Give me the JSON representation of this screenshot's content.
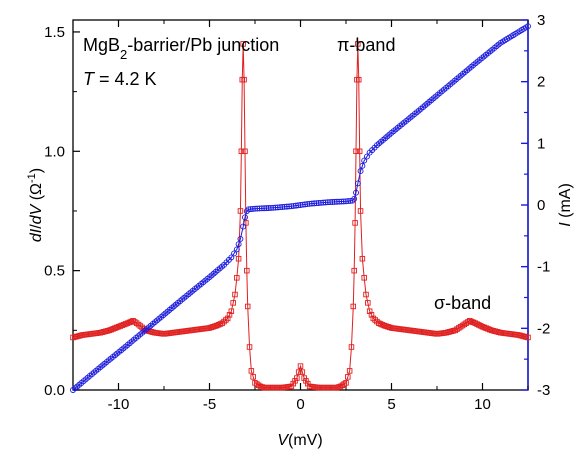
{
  "chart_data": {
    "type": "scatter",
    "title": "",
    "xlabel": "V(mV)",
    "xlim": [
      -12.5,
      12.5
    ],
    "x_ticks": [
      -10,
      -5,
      0,
      5,
      10
    ],
    "y_left": {
      "label": "dI/dV (Ω⁻¹)",
      "ylim": [
        0,
        1.55
      ],
      "ticks": [
        "0.0",
        "0.5",
        "1.0",
        "1.5"
      ]
    },
    "y_right": {
      "label": "I (mA)",
      "ylim": [
        -3,
        3
      ],
      "ticks": [
        "-3",
        "-2",
        "-1",
        "0",
        "1",
        "2",
        "3"
      ]
    },
    "annotations": {
      "line1_main": "MgB",
      "line1_sub": "2",
      "line1_rest": "-barrier/Pb junction",
      "line2_var": "T",
      "line2_rest": " = 4.2 K",
      "pi_band": "π-band",
      "sigma_band": "σ-band"
    },
    "colors": {
      "didv": "#e02020",
      "current": "#1a1adc",
      "right_axis": "#1a1adc"
    },
    "series": [
      {
        "axis": "left",
        "marker": "open-square",
        "points": [
          [
            -12.5,
            0.22
          ],
          [
            -12,
            0.23
          ],
          [
            -11.5,
            0.235
          ],
          [
            -11,
            0.24
          ],
          [
            -10.5,
            0.25
          ],
          [
            -10,
            0.265
          ],
          [
            -9.5,
            0.28
          ],
          [
            -9.2,
            0.29
          ],
          [
            -9,
            0.28
          ],
          [
            -8.5,
            0.25
          ],
          [
            -8,
            0.24
          ],
          [
            -7.5,
            0.235
          ],
          [
            -7,
            0.24
          ],
          [
            -6.5,
            0.245
          ],
          [
            -6,
            0.25
          ],
          [
            -5.5,
            0.255
          ],
          [
            -5,
            0.26
          ],
          [
            -4.6,
            0.27
          ],
          [
            -4.3,
            0.28
          ],
          [
            -4,
            0.3
          ],
          [
            -3.8,
            0.33
          ],
          [
            -3.6,
            0.4
          ],
          [
            -3.5,
            0.47
          ],
          [
            -3.4,
            0.55
          ],
          [
            -3.3,
            0.75
          ],
          [
            -3.25,
            1.0
          ],
          [
            -3.2,
            1.3
          ],
          [
            -3.15,
            1.45
          ],
          [
            -3.1,
            1.3
          ],
          [
            -3.05,
            1.0
          ],
          [
            -3.0,
            0.7
          ],
          [
            -2.95,
            0.5
          ],
          [
            -2.9,
            0.35
          ],
          [
            -2.8,
            0.18
          ],
          [
            -2.7,
            0.08
          ],
          [
            -2.5,
            0.03
          ],
          [
            -2.2,
            0.015
          ],
          [
            -2,
            0.01
          ],
          [
            -1.5,
            0.01
          ],
          [
            -1,
            0.01
          ],
          [
            -0.5,
            0.015
          ],
          [
            -0.2,
            0.05
          ],
          [
            0,
            0.1
          ],
          [
            0.2,
            0.05
          ],
          [
            0.5,
            0.015
          ],
          [
            1,
            0.01
          ],
          [
            1.5,
            0.01
          ],
          [
            2,
            0.01
          ],
          [
            2.2,
            0.015
          ],
          [
            2.5,
            0.03
          ],
          [
            2.7,
            0.08
          ],
          [
            2.8,
            0.18
          ],
          [
            2.9,
            0.35
          ],
          [
            2.95,
            0.5
          ],
          [
            3.0,
            0.7
          ],
          [
            3.05,
            1.0
          ],
          [
            3.1,
            1.3
          ],
          [
            3.15,
            1.45
          ],
          [
            3.2,
            1.3
          ],
          [
            3.25,
            1.0
          ],
          [
            3.3,
            0.75
          ],
          [
            3.4,
            0.55
          ],
          [
            3.5,
            0.47
          ],
          [
            3.6,
            0.4
          ],
          [
            3.8,
            0.33
          ],
          [
            4,
            0.3
          ],
          [
            4.3,
            0.28
          ],
          [
            4.6,
            0.27
          ],
          [
            5,
            0.26
          ],
          [
            5.5,
            0.255
          ],
          [
            6,
            0.25
          ],
          [
            6.5,
            0.245
          ],
          [
            7,
            0.24
          ],
          [
            7.5,
            0.235
          ],
          [
            8,
            0.24
          ],
          [
            8.5,
            0.25
          ],
          [
            9,
            0.275
          ],
          [
            9.3,
            0.29
          ],
          [
            9.6,
            0.28
          ],
          [
            10,
            0.265
          ],
          [
            10.5,
            0.25
          ],
          [
            11,
            0.24
          ],
          [
            11.5,
            0.235
          ],
          [
            12,
            0.23
          ],
          [
            12.5,
            0.22
          ]
        ]
      },
      {
        "axis": "right",
        "marker": "open-circle",
        "points": [
          [
            -12.5,
            -3.0
          ],
          [
            -11,
            -2.63
          ],
          [
            -9.5,
            -2.27
          ],
          [
            -8,
            -1.9
          ],
          [
            -6.5,
            -1.53
          ],
          [
            -5,
            -1.17
          ],
          [
            -4.2,
            -0.97
          ],
          [
            -3.8,
            -0.85
          ],
          [
            -3.5,
            -0.72
          ],
          [
            -3.3,
            -0.55
          ],
          [
            -3.15,
            -0.35
          ],
          [
            -3.05,
            -0.2
          ],
          [
            -2.95,
            -0.1
          ],
          [
            -2.85,
            -0.07
          ],
          [
            -2.5,
            -0.06
          ],
          [
            -1.5,
            -0.045
          ],
          [
            -0.5,
            -0.02
          ],
          [
            0,
            0.0
          ],
          [
            0.5,
            0.02
          ],
          [
            1.5,
            0.045
          ],
          [
            2.5,
            0.06
          ],
          [
            2.85,
            0.07
          ],
          [
            2.95,
            0.1
          ],
          [
            3.05,
            0.2
          ],
          [
            3.15,
            0.35
          ],
          [
            3.3,
            0.55
          ],
          [
            3.5,
            0.72
          ],
          [
            3.8,
            0.85
          ],
          [
            4.2,
            0.97
          ],
          [
            5,
            1.17
          ],
          [
            6.5,
            1.53
          ],
          [
            8,
            1.9
          ],
          [
            9.5,
            2.27
          ],
          [
            11,
            2.63
          ],
          [
            12.5,
            2.9
          ]
        ]
      }
    ]
  }
}
